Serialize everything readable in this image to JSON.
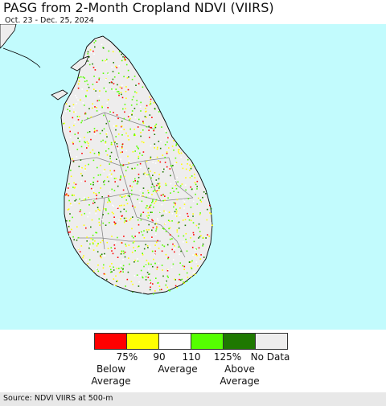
{
  "title": "PASG from 2-Month Cropland NDVI (VIIRS)",
  "subtitle": "Oct. 23 - Dec. 25, 2024",
  "colors": {
    "ocean": "#c2fbfd",
    "land": "#eeeded",
    "boundary": "#888888",
    "coast": "#000000"
  },
  "legend": {
    "swatches": [
      {
        "color": "#ff0000"
      },
      {
        "color": "#ffff00"
      },
      {
        "color": "#ffffff"
      },
      {
        "color": "#55ff00"
      },
      {
        "color": "#1e7800"
      },
      {
        "color": "#eeeded"
      }
    ],
    "ticks": [
      "75%",
      "90",
      "110",
      "125%",
      "No Data"
    ],
    "below": "Below\nAverage",
    "average": "Average",
    "above": "Above\nAverage"
  },
  "source": "Source: NDVI VIIRS at 500-m"
}
